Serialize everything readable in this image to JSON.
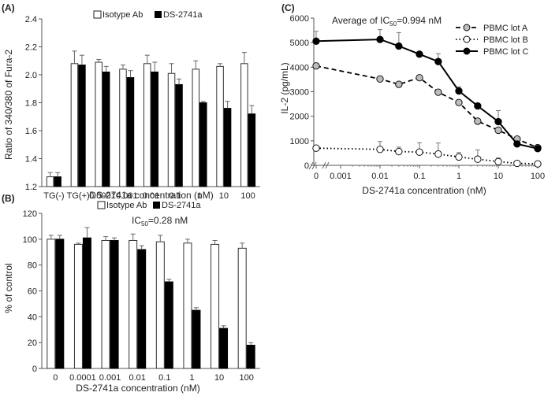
{
  "chart_data": [
    {
      "id": "A",
      "type": "bar",
      "panel_label": "(A)",
      "ylabel": "Ratio of 340/380 of Fura-2",
      "xlabel": "DS-2741a concentration (nM)",
      "ylim": [
        1.2,
        2.4
      ],
      "yticks": [
        "1.2",
        "1.4",
        "1.6",
        "1.8",
        "2.0",
        "2.2",
        "2.4"
      ],
      "categories": [
        "TG(-)",
        "TG(+)",
        "0.0001",
        "0.001",
        "0.01",
        "0.1",
        "1",
        "10",
        "100"
      ],
      "legend": "top-center",
      "series": [
        {
          "name": "Isotype Ab",
          "fill": "#ffffff",
          "values": [
            1.27,
            2.08,
            2.09,
            2.04,
            2.08,
            2.01,
            2.04,
            2.06,
            2.08
          ],
          "errors": [
            0.03,
            0.09,
            0.02,
            0.03,
            0.06,
            0.07,
            0.06,
            0.02,
            0.08
          ]
        },
        {
          "name": "DS-2741a",
          "fill": "#000000",
          "values": [
            1.27,
            2.07,
            2.02,
            1.98,
            2.02,
            1.93,
            1.8,
            1.76,
            1.72
          ],
          "errors": [
            0.03,
            0.07,
            0.04,
            0.05,
            0.07,
            0.04,
            0.01,
            0.05,
            0.06
          ]
        }
      ]
    },
    {
      "id": "B",
      "type": "bar",
      "panel_label": "(B)",
      "ylabel": "% of control",
      "xlabel": "DS-2741a concentration (nM)",
      "annotation": "IC50=0.28 nM",
      "annotation_main": "IC",
      "annotation_sub": "50",
      "annotation_rest": "=0.28 nM",
      "ylim": [
        0,
        120
      ],
      "yticks": [
        "0",
        "20",
        "40",
        "60",
        "80",
        "100",
        "120"
      ],
      "categories": [
        "0",
        "0.0001",
        "0.001",
        "0.01",
        "0.1",
        "1",
        "10",
        "100"
      ],
      "legend": "top-center",
      "series": [
        {
          "name": "Isotype Ab",
          "fill": "#ffffff",
          "values": [
            100,
            96,
            99,
            99,
            98,
            97,
            96,
            93
          ],
          "errors": [
            3,
            1,
            3,
            5,
            5,
            3,
            3,
            4
          ]
        },
        {
          "name": "DS-2741a",
          "fill": "#000000",
          "values": [
            100,
            101,
            99,
            92,
            67,
            45,
            31,
            18
          ],
          "errors": [
            3,
            8,
            2,
            3,
            2,
            2,
            2,
            2
          ]
        }
      ]
    },
    {
      "id": "C",
      "type": "line",
      "panel_label": "(C)",
      "ylabel": "IL-2 (pg/mL)",
      "xlabel": "DS-2741a concentration (nM)",
      "title_main": "Average of IC",
      "title_sub": "50",
      "title_rest": "=0.994 nM",
      "ylim": [
        0,
        6000
      ],
      "yticks": [
        "0",
        "1000",
        "2000",
        "3000",
        "4000",
        "5000",
        "6000"
      ],
      "xscale": "log",
      "xticks": [
        "0",
        "0.001",
        "0.01",
        "0.1",
        "1",
        "10",
        "100"
      ],
      "legend": "top-right",
      "x": [
        "0",
        0.01,
        0.03,
        0.1,
        0.3,
        1,
        3,
        10,
        30,
        100
      ],
      "series": [
        {
          "name": "PBMC lot A",
          "style": "dashed",
          "marker_fill": "#bdbdbd",
          "values": [
            4050,
            3520,
            3300,
            3570,
            2980,
            2560,
            1800,
            1430,
            1070,
            720
          ],
          "errors": [
            0,
            0,
            0,
            0,
            0,
            0,
            0,
            0,
            0,
            0
          ]
        },
        {
          "name": "PBMC lot B",
          "style": "dotted",
          "marker_fill": "#ffffff",
          "values": [
            700,
            650,
            560,
            540,
            460,
            340,
            250,
            150,
            80,
            60
          ],
          "errors": [
            0,
            320,
            180,
            380,
            450,
            180,
            380,
            150,
            0,
            0
          ]
        },
        {
          "name": "PBMC lot C",
          "style": "solid",
          "marker_fill": "#000000",
          "values": [
            5060,
            5130,
            4860,
            4530,
            4230,
            3030,
            2420,
            1780,
            870,
            680
          ],
          "errors": [
            400,
            400,
            550,
            100,
            320,
            170,
            0,
            450,
            0,
            0
          ]
        }
      ]
    }
  ]
}
